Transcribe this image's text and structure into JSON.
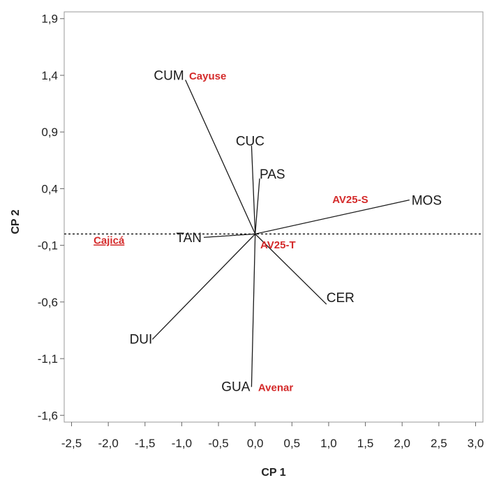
{
  "chart_data": {
    "type": "biplot",
    "xlabel": "CP 1",
    "ylabel": "CP 2",
    "xlim": [
      -2.5,
      3.0
    ],
    "ylim": [
      -1.6,
      1.9
    ],
    "x_ticks": [
      -2.5,
      -2.0,
      -1.5,
      -1.0,
      -0.5,
      0.0,
      0.5,
      1.0,
      1.5,
      2.0,
      2.5,
      3.0
    ],
    "x_tick_labels": [
      "-2,5",
      "-2,0",
      "-1,5",
      "-1,0",
      "-0,5",
      "0,0",
      "0,5",
      "1,0",
      "1,5",
      "2,0",
      "2,5",
      "3,0"
    ],
    "y_ticks": [
      -1.6,
      -1.1,
      -0.6,
      -0.1,
      0.4,
      0.9,
      1.4,
      1.9
    ],
    "y_tick_labels": [
      "-1,6",
      "-1,1",
      "-0,6",
      "-0,1",
      "0,4",
      "0,9",
      "1,4",
      "1,9"
    ],
    "reference_line_y": 0.0,
    "grid": false,
    "variables": [
      {
        "name": "CUM",
        "x": -0.95,
        "y": 1.36
      },
      {
        "name": "CUC",
        "x": -0.05,
        "y": 0.78
      },
      {
        "name": "PAS",
        "x": 0.06,
        "y": 0.49
      },
      {
        "name": "MOS",
        "x": 2.1,
        "y": 0.3
      },
      {
        "name": "TAN",
        "x": -0.7,
        "y": -0.03
      },
      {
        "name": "CER",
        "x": 0.97,
        "y": -0.62
      },
      {
        "name": "DUI",
        "x": -1.4,
        "y": -0.93
      },
      {
        "name": "GUA",
        "x": -0.05,
        "y": -1.35
      }
    ],
    "objects": [
      {
        "name": "Cayuse",
        "x": -0.9,
        "y": 1.4
      },
      {
        "name": "AV25-S",
        "x": 1.05,
        "y": 0.31
      },
      {
        "name": "Cajicá",
        "x": -2.2,
        "y": -0.05
      },
      {
        "name": "AV25-T",
        "x": 0.07,
        "y": -0.09
      },
      {
        "name": "Avenar",
        "x": 0.04,
        "y": -1.35
      }
    ],
    "colors": {
      "axis": "#999999",
      "vector": "#1a1a1a",
      "object_label": "#d42a2a"
    }
  }
}
